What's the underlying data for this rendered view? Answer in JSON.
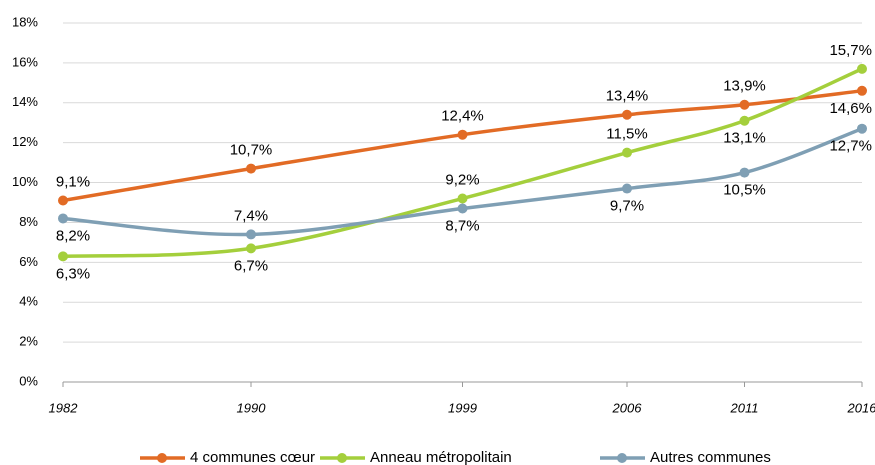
{
  "chart_data": {
    "type": "line",
    "x": [
      1982,
      1990,
      1999,
      2006,
      2011,
      2016
    ],
    "xlim": [
      1982,
      2016
    ],
    "xticks": [
      1982,
      1990,
      1999,
      2006,
      2011,
      2016
    ],
    "ylim": [
      0,
      18
    ],
    "yticks": [
      {
        "value": 0,
        "label": "0%"
      },
      {
        "value": 2,
        "label": "2%"
      },
      {
        "value": 4,
        "label": "4%"
      },
      {
        "value": 6,
        "label": "6%"
      },
      {
        "value": 8,
        "label": "8%"
      },
      {
        "value": 10,
        "label": "10%"
      },
      {
        "value": 12,
        "label": "12%"
      },
      {
        "value": 14,
        "label": "14%"
      },
      {
        "value": 16,
        "label": "16%"
      },
      {
        "value": 18,
        "label": "18%"
      }
    ],
    "grid": true,
    "legend": "bottom",
    "series": [
      {
        "name": "4 communes cœur",
        "color": "#e26b25",
        "values": [
          9.1,
          10.7,
          12.4,
          13.4,
          13.9,
          14.6
        ],
        "value_labels": [
          "9,1%",
          "10,7%",
          "12,4%",
          "13,4%",
          "13,9%",
          "14,6%"
        ]
      },
      {
        "name": "Anneau métropolitain",
        "color": "#a4cf3c",
        "values": [
          6.3,
          6.7,
          9.2,
          11.5,
          13.1,
          15.7
        ],
        "value_labels": [
          "6,3%",
          "6,7%",
          "9,2%",
          "11,5%",
          "13,1%",
          "15,7%"
        ]
      },
      {
        "name": "Autres communes",
        "color": "#7f9fb4",
        "values": [
          8.2,
          7.4,
          8.7,
          9.7,
          10.5,
          12.7
        ],
        "value_labels": [
          "8,2%",
          "7,4%",
          "8,7%",
          "9,7%",
          "10,5%",
          "12,7%"
        ]
      }
    ]
  }
}
